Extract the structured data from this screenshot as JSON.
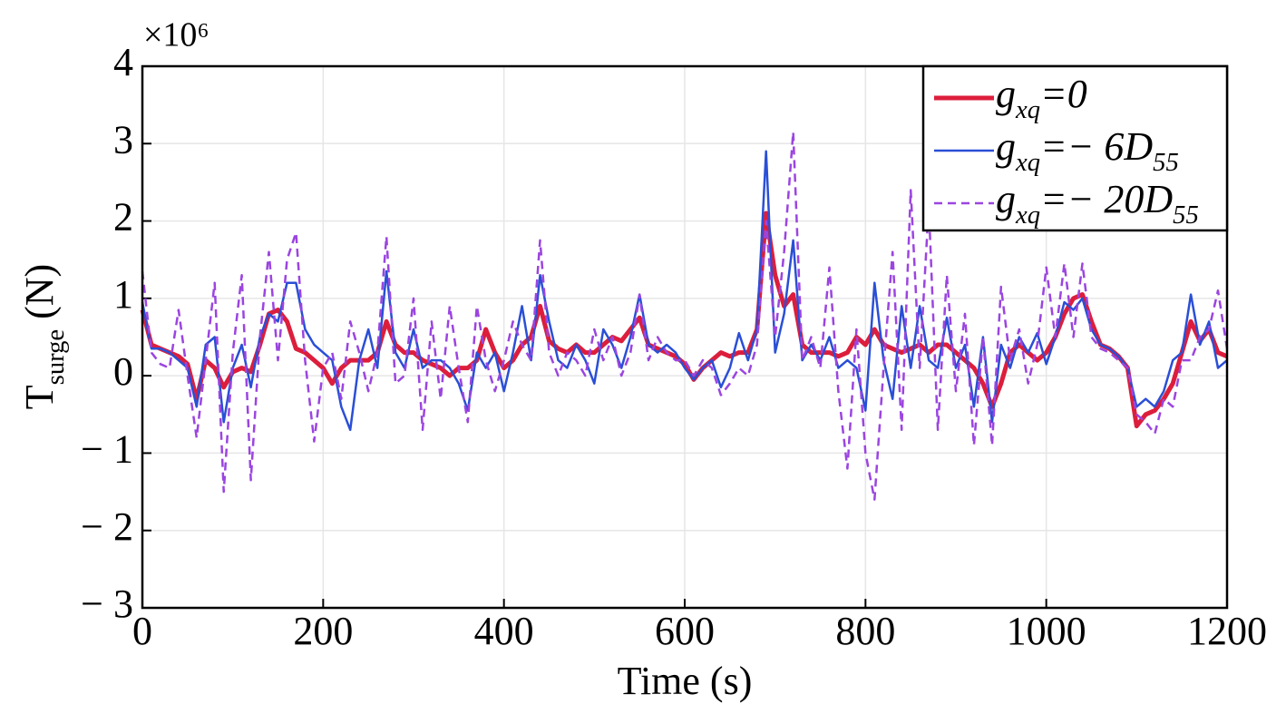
{
  "chart_data": {
    "type": "line",
    "axis_multiplier": "×10⁶",
    "xlabel": "Time (s)",
    "ylabel": "Tsurge (N)",
    "x": [
      0,
      10,
      20,
      30,
      40,
      50,
      60,
      70,
      80,
      90,
      100,
      110,
      120,
      130,
      140,
      150,
      160,
      170,
      180,
      190,
      200,
      210,
      220,
      230,
      240,
      250,
      260,
      270,
      280,
      290,
      300,
      310,
      320,
      330,
      340,
      350,
      360,
      370,
      380,
      390,
      400,
      410,
      420,
      430,
      440,
      450,
      460,
      470,
      480,
      490,
      500,
      510,
      520,
      530,
      540,
      550,
      560,
      570,
      580,
      590,
      600,
      610,
      620,
      630,
      640,
      650,
      660,
      670,
      680,
      690,
      700,
      710,
      720,
      730,
      740,
      750,
      760,
      770,
      780,
      790,
      800,
      810,
      820,
      830,
      840,
      850,
      860,
      870,
      880,
      890,
      900,
      910,
      920,
      930,
      940,
      950,
      960,
      970,
      980,
      990,
      1000,
      1010,
      1020,
      1030,
      1040,
      1050,
      1060,
      1070,
      1080,
      1090,
      1100,
      1110,
      1120,
      1130,
      1140,
      1150,
      1160,
      1170,
      1180,
      1190,
      1200
    ],
    "series": [
      {
        "name": "gxq=0",
        "color": "#dc1e3c",
        "linewidth": 5,
        "linestyle": "solid",
        "values": [
          0.85,
          0.4,
          0.35,
          0.3,
          0.25,
          0.15,
          -0.3,
          0.2,
          0.1,
          -0.15,
          0.05,
          0.1,
          0.05,
          0.4,
          0.8,
          0.85,
          0.7,
          0.35,
          0.3,
          0.2,
          0.1,
          -0.1,
          0.1,
          0.2,
          0.2,
          0.2,
          0.3,
          0.7,
          0.4,
          0.3,
          0.3,
          0.2,
          0.15,
          0.1,
          0.0,
          0.1,
          0.1,
          0.2,
          0.6,
          0.3,
          0.1,
          0.2,
          0.4,
          0.5,
          0.9,
          0.45,
          0.35,
          0.3,
          0.4,
          0.3,
          0.3,
          0.4,
          0.5,
          0.45,
          0.6,
          0.75,
          0.4,
          0.35,
          0.3,
          0.25,
          0.15,
          -0.05,
          0.1,
          0.2,
          0.3,
          0.25,
          0.3,
          0.3,
          0.6,
          2.1,
          1.3,
          0.9,
          1.05,
          0.4,
          0.3,
          0.3,
          0.3,
          0.25,
          0.3,
          0.5,
          0.4,
          0.6,
          0.4,
          0.35,
          0.3,
          0.35,
          0.4,
          0.3,
          0.4,
          0.4,
          0.3,
          0.2,
          0.1,
          -0.1,
          -0.4,
          -0.1,
          0.3,
          0.4,
          0.3,
          0.2,
          0.3,
          0.5,
          0.8,
          1.0,
          1.05,
          0.7,
          0.4,
          0.35,
          0.25,
          0.1,
          -0.65,
          -0.5,
          -0.45,
          -0.3,
          -0.1,
          0.3,
          0.7,
          0.45,
          0.6,
          0.3,
          0.25
        ]
      },
      {
        "name": "gxq=− 6D55",
        "color": "#2a4fd6",
        "linewidth": 2.5,
        "linestyle": "solid",
        "values": [
          0.95,
          0.35,
          0.35,
          0.3,
          0.2,
          0.1,
          -0.4,
          0.4,
          0.5,
          -0.6,
          0.1,
          0.4,
          -0.15,
          0.5,
          0.8,
          0.7,
          1.2,
          1.2,
          0.6,
          0.4,
          0.3,
          0.2,
          -0.4,
          -0.7,
          0.2,
          0.6,
          0.1,
          1.35,
          0.3,
          0.1,
          0.6,
          0.1,
          0.2,
          0.2,
          0.1,
          -0.1,
          -0.45,
          0.3,
          0.1,
          0.3,
          -0.2,
          0.3,
          0.9,
          0.2,
          1.3,
          0.7,
          0.2,
          0.1,
          0.4,
          0.2,
          -0.1,
          0.6,
          0.4,
          0.1,
          0.5,
          1.05,
          0.4,
          0.3,
          0.4,
          0.3,
          0.1,
          -0.05,
          0.1,
          0.2,
          -0.15,
          0.1,
          0.55,
          0.2,
          0.6,
          2.9,
          0.3,
          0.8,
          1.75,
          0.2,
          0.4,
          0.2,
          0.5,
          0.1,
          0.2,
          0.1,
          -0.45,
          1.2,
          0.2,
          -0.3,
          0.9,
          0.1,
          0.9,
          0.2,
          0.1,
          0.75,
          0.1,
          0.4,
          -0.4,
          0.5,
          -0.6,
          0.4,
          0.1,
          0.5,
          0.3,
          0.55,
          0.15,
          0.5,
          0.95,
          0.85,
          1.0,
          0.6,
          0.4,
          0.35,
          0.25,
          0.1,
          -0.4,
          -0.3,
          -0.4,
          -0.2,
          0.2,
          0.3,
          1.05,
          0.4,
          0.7,
          0.1,
          0.2
        ]
      },
      {
        "name": "gxq=− 20D55",
        "color": "#9b45e0",
        "linewidth": 2.5,
        "linestyle": "dashed",
        "values": [
          1.35,
          0.3,
          0.15,
          0.1,
          0.85,
          0.0,
          -0.8,
          0.2,
          1.2,
          -1.5,
          0.3,
          1.3,
          -1.35,
          0.5,
          1.6,
          0.2,
          1.5,
          1.85,
          0.2,
          -0.85,
          0.1,
          0.3,
          -0.3,
          0.7,
          0.3,
          -0.2,
          0.3,
          1.8,
          -0.1,
          0.0,
          1.0,
          -0.7,
          0.7,
          -0.3,
          0.9,
          0.1,
          -0.6,
          0.9,
          0.2,
          -0.2,
          0.2,
          0.7,
          0.4,
          0.2,
          1.75,
          0.3,
          0.0,
          0.3,
          0.2,
          0.0,
          0.6,
          0.2,
          0.5,
          0.0,
          0.3,
          1.05,
          0.2,
          0.5,
          0.3,
          0.2,
          0.2,
          0.0,
          0.2,
          0.1,
          -0.25,
          -0.1,
          0.1,
          0.0,
          0.4,
          2.0,
          0.5,
          1.6,
          3.15,
          0.2,
          0.5,
          0.1,
          1.4,
          -0.2,
          -1.2,
          0.6,
          -1.0,
          -1.6,
          0.1,
          1.6,
          -0.7,
          2.4,
          0.1,
          2.2,
          -0.7,
          1.3,
          -0.2,
          0.8,
          -0.9,
          0.5,
          -0.9,
          1.15,
          0.2,
          0.6,
          -0.1,
          0.4,
          1.4,
          0.5,
          1.45,
          0.5,
          1.45,
          0.5,
          0.35,
          0.3,
          0.2,
          0.1,
          -0.5,
          -0.6,
          -0.75,
          -0.3,
          -0.4,
          0.2,
          0.2,
          0.5,
          0.6,
          1.1,
          0.35
        ]
      }
    ],
    "xlim": [
      0,
      1200
    ],
    "xticks": [
      0,
      200,
      400,
      600,
      800,
      1000,
      1200
    ],
    "ylim": [
      -3,
      4
    ],
    "yticks": [
      {
        "value": -3,
        "label": "− 3"
      },
      {
        "value": -2,
        "label": "− 2"
      },
      {
        "value": -1,
        "label": "− 1"
      },
      0,
      1,
      2,
      3,
      4
    ],
    "grid": true,
    "legend": "upper right"
  }
}
